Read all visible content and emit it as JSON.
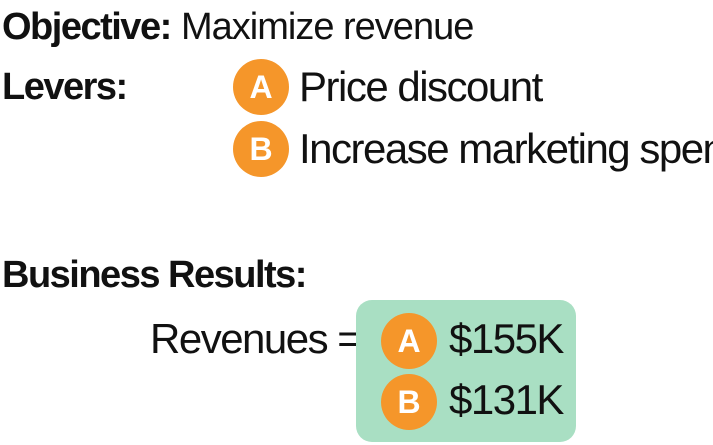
{
  "objective": {
    "label": "Objective:",
    "value": "Maximize revenue"
  },
  "levers": {
    "label": "Levers:",
    "items": [
      {
        "badge": "A",
        "text": "Price discount"
      },
      {
        "badge": "B",
        "text": "Increase marketing spend"
      }
    ]
  },
  "results": {
    "label": "Business Results:",
    "revenues_label": "Revenues =",
    "items": [
      {
        "badge": "A",
        "value": "$155K"
      },
      {
        "badge": "B",
        "value": "$131K"
      }
    ]
  },
  "colors": {
    "badge": "#f5962a",
    "results_box": "#a9dfc3"
  }
}
